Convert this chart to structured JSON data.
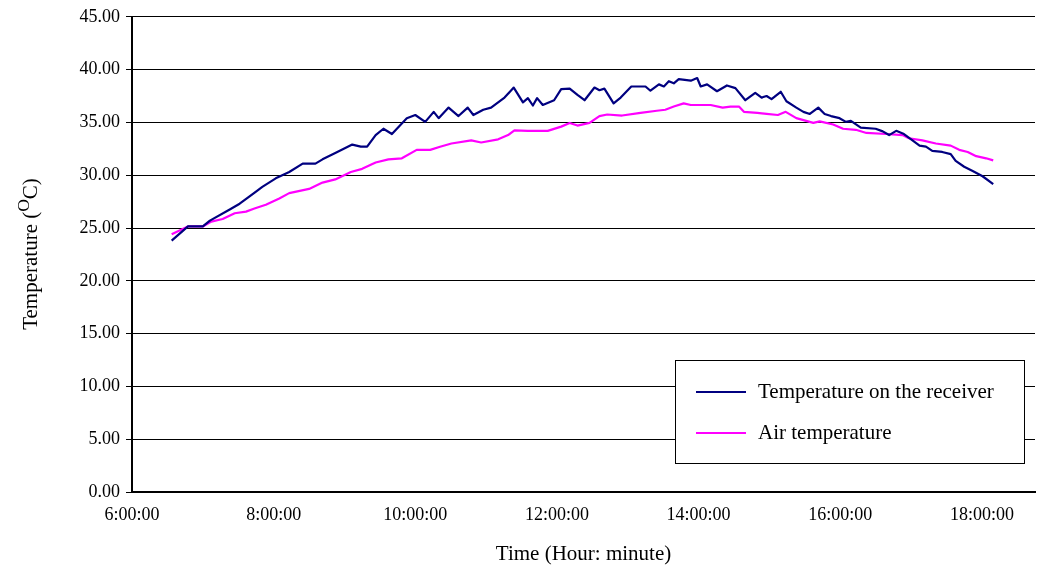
{
  "chart_data": {
    "type": "line",
    "xlabel": "Time (Hour: minute)",
    "ylabel": "Temperature ($^{O}$C)",
    "xlim": [
      6,
      18.75
    ],
    "xticks": [
      {
        "value": 6,
        "label": "6:00:00"
      },
      {
        "value": 8,
        "label": "8:00:00"
      },
      {
        "value": 10,
        "label": "10:00:00"
      },
      {
        "value": 12,
        "label": "12:00:00"
      },
      {
        "value": 14,
        "label": "14:00:00"
      },
      {
        "value": 16,
        "label": "16:00:00"
      },
      {
        "value": 18,
        "label": "18:00:00"
      }
    ],
    "ylim": [
      0,
      45
    ],
    "yticks": [
      {
        "value": 0,
        "label": "0.00"
      },
      {
        "value": 5,
        "label": "5.00"
      },
      {
        "value": 10,
        "label": "10.00"
      },
      {
        "value": 15,
        "label": "15.00"
      },
      {
        "value": 20,
        "label": "20.00"
      },
      {
        "value": 25,
        "label": "25.00"
      },
      {
        "value": 30,
        "label": "30.00"
      },
      {
        "value": 35,
        "label": "35.00"
      },
      {
        "value": 40,
        "label": "40.00"
      },
      {
        "value": 45,
        "label": "45.00"
      }
    ],
    "grid": "y",
    "legend": "bottom right",
    "marker": "none",
    "line_style": "solid",
    "series": [
      {
        "name": "Temperature on the receiver",
        "color": "#000080",
        "x": [
          6.56,
          6.79,
          7.0,
          7.1,
          7.38,
          7.52,
          7.66,
          7.84,
          8.03,
          8.22,
          8.41,
          8.59,
          8.69,
          8.87,
          9.11,
          9.23,
          9.32,
          9.44,
          9.55,
          9.67,
          9.88,
          10.0,
          10.14,
          10.26,
          10.33,
          10.47,
          10.61,
          10.74,
          10.82,
          10.96,
          11.07,
          11.26,
          11.39,
          11.52,
          11.59,
          11.66,
          11.72,
          11.8,
          11.96,
          12.06,
          12.18,
          12.29,
          12.39,
          12.53,
          12.6,
          12.67,
          12.8,
          12.9,
          13.05,
          13.25,
          13.32,
          13.44,
          13.51,
          13.58,
          13.65,
          13.72,
          13.89,
          13.98,
          14.03,
          14.12,
          14.26,
          14.4,
          14.52,
          14.66,
          14.8,
          14.89,
          14.96,
          15.03,
          15.16,
          15.24,
          15.38,
          15.48,
          15.57,
          15.69,
          15.78,
          15.87,
          15.99,
          16.08,
          16.15,
          16.29,
          16.5,
          16.6,
          16.69,
          16.79,
          16.9,
          17.02,
          17.12,
          17.21,
          17.3,
          17.44,
          17.56,
          17.63,
          17.75,
          17.87,
          18.01,
          18.16
        ],
        "values": [
          23.8,
          25.15,
          25.15,
          25.7,
          26.75,
          27.3,
          28.0,
          28.9,
          29.7,
          30.3,
          31.1,
          31.1,
          31.5,
          32.1,
          32.9,
          32.7,
          32.7,
          33.8,
          34.4,
          33.9,
          35.4,
          35.7,
          35.05,
          36.0,
          35.4,
          36.4,
          35.6,
          36.4,
          35.7,
          36.2,
          36.4,
          37.35,
          38.3,
          36.9,
          37.3,
          36.6,
          37.3,
          36.65,
          37.1,
          38.15,
          38.2,
          37.6,
          37.1,
          38.3,
          38.05,
          38.2,
          36.8,
          37.35,
          38.4,
          38.4,
          38.0,
          38.6,
          38.4,
          38.9,
          38.7,
          39.1,
          38.95,
          39.2,
          38.4,
          38.6,
          37.95,
          38.5,
          38.25,
          37.1,
          37.8,
          37.35,
          37.5,
          37.2,
          37.9,
          37.0,
          36.4,
          36.0,
          35.8,
          36.4,
          35.8,
          35.6,
          35.4,
          35.05,
          35.15,
          34.5,
          34.4,
          34.15,
          33.8,
          34.2,
          33.9,
          33.3,
          32.8,
          32.7,
          32.3,
          32.2,
          32.0,
          31.35,
          30.8,
          30.4,
          29.9,
          29.15
        ]
      },
      {
        "name": "Air temperature",
        "color": "#ff00ff",
        "x": [
          6.56,
          6.79,
          7.0,
          7.12,
          7.28,
          7.45,
          7.61,
          7.75,
          7.89,
          8.08,
          8.22,
          8.5,
          8.69,
          8.87,
          9.09,
          9.25,
          9.44,
          9.62,
          9.81,
          10.02,
          10.21,
          10.35,
          10.51,
          10.79,
          10.93,
          11.17,
          11.31,
          11.4,
          11.59,
          11.87,
          12.06,
          12.18,
          12.29,
          12.46,
          12.6,
          12.71,
          12.92,
          13.18,
          13.41,
          13.53,
          13.65,
          13.79,
          13.89,
          14.17,
          14.34,
          14.45,
          14.57,
          14.64,
          14.83,
          14.96,
          15.12,
          15.23,
          15.38,
          15.62,
          15.71,
          15.9,
          16.04,
          16.22,
          16.37,
          16.65,
          16.88,
          16.97,
          17.16,
          17.35,
          17.56,
          17.68,
          17.8,
          17.92,
          18.06,
          18.16
        ],
        "values": [
          24.4,
          25.15,
          25.15,
          25.6,
          25.85,
          26.4,
          26.55,
          26.9,
          27.2,
          27.8,
          28.3,
          28.7,
          29.3,
          29.6,
          30.3,
          30.6,
          31.2,
          31.5,
          31.6,
          32.4,
          32.4,
          32.7,
          33.0,
          33.3,
          33.1,
          33.4,
          33.8,
          34.25,
          34.2,
          34.2,
          34.6,
          34.95,
          34.7,
          34.95,
          35.6,
          35.75,
          35.65,
          35.9,
          36.1,
          36.2,
          36.5,
          36.8,
          36.65,
          36.65,
          36.4,
          36.5,
          36.5,
          36.0,
          35.9,
          35.8,
          35.7,
          36.0,
          35.4,
          34.95,
          35.1,
          34.8,
          34.4,
          34.3,
          34.0,
          33.9,
          33.8,
          33.5,
          33.3,
          33.0,
          32.8,
          32.4,
          32.2,
          31.8,
          31.6,
          31.4
        ]
      }
    ]
  }
}
